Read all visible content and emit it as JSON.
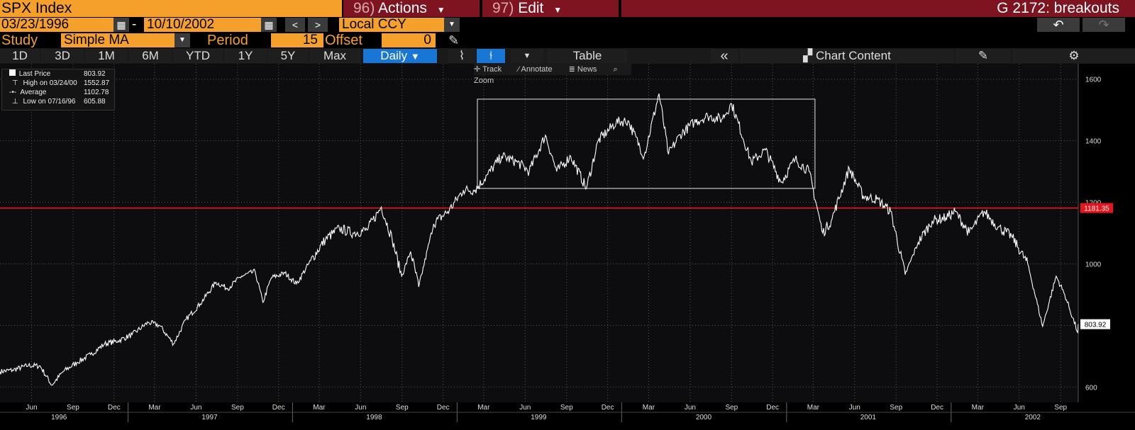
{
  "header": {
    "ticker": "SPX Index",
    "actions_num": "96)",
    "actions_label": "Actions",
    "edit_num": "97)",
    "edit_label": "Edit",
    "chart_title": "G 2172: breakouts"
  },
  "range": {
    "start_date": "03/23/1996",
    "separator": "-",
    "end_date": "10/10/2002",
    "currency": "Local CCY"
  },
  "study": {
    "label": "Study",
    "value": "Simple MA",
    "period_label": "Period",
    "period_value": "15",
    "offset_label": "Offset",
    "offset_value": "0"
  },
  "toolbar": {
    "ranges": [
      "1D",
      "3D",
      "1M",
      "6M",
      "YTD",
      "1Y",
      "5Y",
      "Max"
    ],
    "frequency": "Daily",
    "table_label": "Table",
    "chart_content_label": "Chart Content"
  },
  "chart_tools": {
    "track": "Track",
    "annotate": "Annotate",
    "news": "News",
    "zoom": "Zoom"
  },
  "legend": {
    "last_price_label": "Last Price",
    "last_price_value": "803.92",
    "high_label": "High on 03/24/00",
    "high_value": "1552.87",
    "average_label": "Average",
    "average_value": "1102.78",
    "low_label": "Low on 07/16/96",
    "low_value": "605.88"
  },
  "colors": {
    "ticker_bg": "#f5a02a",
    "menu_bg": "#7d1420",
    "active_button": "#1877d4",
    "reference_line": "#e8131b",
    "price_line": "#ffffff"
  },
  "chart_data": {
    "type": "line",
    "title": "",
    "xlabel": "",
    "ylabel": "",
    "ylim": [
      550,
      1650
    ],
    "xlim": [
      "1996-03-23",
      "2002-10-10"
    ],
    "y_ticks": [
      600,
      800,
      1000,
      1200,
      1400,
      1600
    ],
    "x_month_ticks": [
      {
        "date": "1996-06-01",
        "label": "Jun"
      },
      {
        "date": "1996-09-01",
        "label": "Sep"
      },
      {
        "date": "1996-12-01",
        "label": "Dec"
      },
      {
        "date": "1997-03-01",
        "label": "Mar"
      },
      {
        "date": "1997-06-01",
        "label": "Jun"
      },
      {
        "date": "1997-09-01",
        "label": "Sep"
      },
      {
        "date": "1997-12-01",
        "label": "Dec"
      },
      {
        "date": "1998-03-01",
        "label": "Mar"
      },
      {
        "date": "1998-06-01",
        "label": "Jun"
      },
      {
        "date": "1998-09-01",
        "label": "Sep"
      },
      {
        "date": "1998-12-01",
        "label": "Dec"
      },
      {
        "date": "1999-03-01",
        "label": "Mar"
      },
      {
        "date": "1999-06-01",
        "label": "Jun"
      },
      {
        "date": "1999-09-01",
        "label": "Sep"
      },
      {
        "date": "1999-12-01",
        "label": "Dec"
      },
      {
        "date": "2000-03-01",
        "label": "Mar"
      },
      {
        "date": "2000-06-01",
        "label": "Jun"
      },
      {
        "date": "2000-09-01",
        "label": "Sep"
      },
      {
        "date": "2000-12-01",
        "label": "Dec"
      },
      {
        "date": "2001-03-01",
        "label": "Mar"
      },
      {
        "date": "2001-06-01",
        "label": "Jun"
      },
      {
        "date": "2001-09-01",
        "label": "Sep"
      },
      {
        "date": "2001-12-01",
        "label": "Dec"
      },
      {
        "date": "2002-03-01",
        "label": "Mar"
      },
      {
        "date": "2002-06-01",
        "label": "Jun"
      },
      {
        "date": "2002-09-01",
        "label": "Sep"
      }
    ],
    "x_year_labels": [
      {
        "date": "1996-08-01",
        "label": "1996"
      },
      {
        "date": "1997-07-01",
        "label": "1997"
      },
      {
        "date": "1998-07-01",
        "label": "1998"
      },
      {
        "date": "1999-07-01",
        "label": "1999"
      },
      {
        "date": "2000-07-01",
        "label": "2000"
      },
      {
        "date": "2001-07-01",
        "label": "2001"
      },
      {
        "date": "2002-07-01",
        "label": "2002"
      }
    ],
    "x_year_boundaries": [
      "1997-01-01",
      "1998-01-01",
      "1999-01-01",
      "2000-01-01",
      "2001-01-01",
      "2002-01-01"
    ],
    "series": [
      {
        "name": "Last Price",
        "points": [
          [
            "1996-03-23",
            650
          ],
          [
            "1996-04-20",
            655
          ],
          [
            "1996-05-25",
            670
          ],
          [
            "1996-06-20",
            668
          ],
          [
            "1996-07-16",
            606
          ],
          [
            "1996-08-10",
            650
          ],
          [
            "1996-09-10",
            680
          ],
          [
            "1996-10-10",
            705
          ],
          [
            "1996-11-10",
            740
          ],
          [
            "1996-12-10",
            750
          ],
          [
            "1997-01-10",
            770
          ],
          [
            "1997-02-15",
            810
          ],
          [
            "1997-03-12",
            800
          ],
          [
            "1997-04-12",
            740
          ],
          [
            "1997-05-10",
            820
          ],
          [
            "1997-06-10",
            870
          ],
          [
            "1997-07-15",
            940
          ],
          [
            "1997-08-10",
            920
          ],
          [
            "1997-09-10",
            960
          ],
          [
            "1997-10-10",
            975
          ],
          [
            "1997-10-27",
            875
          ],
          [
            "1997-11-15",
            955
          ],
          [
            "1997-12-15",
            970
          ],
          [
            "1998-01-10",
            935
          ],
          [
            "1998-02-10",
            1010
          ],
          [
            "1998-03-15",
            1080
          ],
          [
            "1998-04-15",
            1115
          ],
          [
            "1998-05-15",
            1100
          ],
          [
            "1998-06-15",
            1110
          ],
          [
            "1998-07-17",
            1185
          ],
          [
            "1998-08-10",
            1080
          ],
          [
            "1998-08-31",
            960
          ],
          [
            "1998-09-20",
            1040
          ],
          [
            "1998-10-08",
            925
          ],
          [
            "1998-11-10",
            1130
          ],
          [
            "1998-12-15",
            1175
          ],
          [
            "1999-01-15",
            1240
          ],
          [
            "1999-02-10",
            1240
          ],
          [
            "1999-03-10",
            1290
          ],
          [
            "1999-04-10",
            1350
          ],
          [
            "1999-05-15",
            1330
          ],
          [
            "1999-06-10",
            1300
          ],
          [
            "1999-07-16",
            1418
          ],
          [
            "1999-08-10",
            1300
          ],
          [
            "1999-09-10",
            1350
          ],
          [
            "1999-10-15",
            1245
          ],
          [
            "1999-11-10",
            1400
          ],
          [
            "1999-12-20",
            1460
          ],
          [
            "2000-01-15",
            1465
          ],
          [
            "2000-02-20",
            1350
          ],
          [
            "2000-03-24",
            1553
          ],
          [
            "2000-04-14",
            1356
          ],
          [
            "2000-05-10",
            1420
          ],
          [
            "2000-06-10",
            1460
          ],
          [
            "2000-07-10",
            1480
          ],
          [
            "2000-08-10",
            1470
          ],
          [
            "2000-09-01",
            1520
          ],
          [
            "2000-10-15",
            1330
          ],
          [
            "2000-11-15",
            1370
          ],
          [
            "2000-12-20",
            1265
          ],
          [
            "2001-01-20",
            1340
          ],
          [
            "2001-02-20",
            1300
          ],
          [
            "2001-03-22",
            1100
          ],
          [
            "2001-04-10",
            1140
          ],
          [
            "2001-05-20",
            1310
          ],
          [
            "2001-06-20",
            1220
          ],
          [
            "2001-07-20",
            1210
          ],
          [
            "2001-08-20",
            1170
          ],
          [
            "2001-09-21",
            965
          ],
          [
            "2001-10-20",
            1070
          ],
          [
            "2001-11-20",
            1140
          ],
          [
            "2001-12-20",
            1150
          ],
          [
            "2002-01-10",
            1170
          ],
          [
            "2002-02-10",
            1100
          ],
          [
            "2002-03-15",
            1170
          ],
          [
            "2002-04-15",
            1120
          ],
          [
            "2002-05-15",
            1090
          ],
          [
            "2002-06-20",
            1000
          ],
          [
            "2002-07-23",
            797
          ],
          [
            "2002-08-22",
            960
          ],
          [
            "2002-09-10",
            900
          ],
          [
            "2002-10-09",
            777
          ],
          [
            "2002-10-10",
            804
          ]
        ]
      }
    ],
    "reference_line": {
      "value": 1181.35,
      "label": "1181.35"
    },
    "last_value_label": "803.92",
    "highlight_box": {
      "x_start": "1999-02-15",
      "x_end": "2001-03-05",
      "y_low": 1245,
      "y_high": 1535
    },
    "grid": true
  }
}
